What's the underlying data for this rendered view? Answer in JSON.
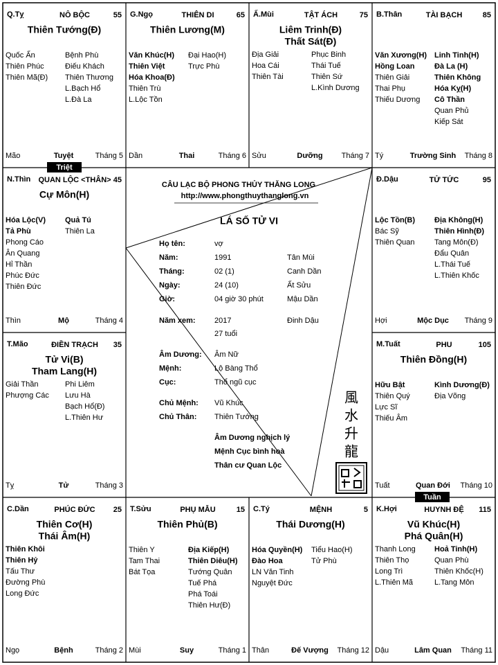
{
  "header": {
    "club": "CÂU LẠC BỘ PHONG THỦY THĂNG LONG",
    "url": "http://www.phongthuythanglong.vn",
    "title": "LÁ SỐ TỬ VI"
  },
  "info": [
    {
      "label": "Họ tên:",
      "values": [
        "vợ"
      ]
    },
    {
      "label": "Năm:",
      "values": [
        "1991",
        "Tân Mùi"
      ]
    },
    {
      "label": "Tháng:",
      "values": [
        "02 (1)",
        "Canh Dần"
      ]
    },
    {
      "label": "Ngày:",
      "values": [
        "24 (10)",
        "Ất Sửu"
      ]
    },
    {
      "label": "Giờ:",
      "values": [
        "04 giờ 30 phút",
        "Mậu Dần"
      ]
    },
    {
      "label": "Năm xem:",
      "values": [
        "2017",
        "Đinh Dậu"
      ],
      "note": "27 tuổi"
    },
    {
      "label": "Âm Dương:",
      "values": [
        "Âm Nữ"
      ]
    },
    {
      "label": "Mệnh:",
      "values": [
        "Lộ Bàng Thổ"
      ]
    },
    {
      "label": "Cục:",
      "values": [
        "Thổ ngũ cục"
      ]
    },
    {
      "label": "Chủ Mệnh:",
      "values": [
        "Vũ Khúc"
      ]
    },
    {
      "label": "Chủ Thân:",
      "values": [
        "Thiên Tướng"
      ]
    }
  ],
  "remarks": [
    "Âm Dương nghịch lý",
    "Mệnh Cục bình hoà",
    "Thân cư Quan Lộc"
  ],
  "calligraphy": [
    "風",
    "水",
    "升",
    "龍"
  ],
  "badges": {
    "triet": "Triệt",
    "tuan": "Tuần"
  },
  "palaces": [
    {
      "can_chi": "Q.Tỵ",
      "name": "NÔ BỘC",
      "number": 55,
      "main": [
        "Thiên Tướng(Đ)"
      ],
      "left_bold": [],
      "left": [
        "Quốc Ấn",
        "Thiên Phúc",
        "Thiên Mã(Đ)"
      ],
      "right_bold": [],
      "right": [
        "Bệnh Phù",
        "Điếu Khách",
        "Thiên Thương",
        "L.Bạch Hổ",
        "L.Đà La"
      ],
      "branch": "Mão",
      "phase": "Tuyệt",
      "month": "Tháng 5"
    },
    {
      "can_chi": "G.Ngọ",
      "name": "THIÊN DI",
      "number": 65,
      "main": [
        "Thiên Lương(M)"
      ],
      "left_bold": [
        "Văn Khúc(H)",
        "Thiên Việt",
        "Hóa Khoa(Đ)"
      ],
      "left": [
        "Thiên Trù",
        "L.Lộc Tồn"
      ],
      "right_bold": [],
      "right": [
        "Đại Hao(H)",
        "Trực Phù"
      ],
      "branch": "Dần",
      "phase": "Thai",
      "month": "Tháng 6"
    },
    {
      "can_chi": "Ấ.Mùi",
      "name": "TẬT ÁCH",
      "number": 75,
      "main": [
        "Liêm Trinh(Đ)",
        "Thất Sát(Đ)"
      ],
      "left_bold": [],
      "left": [
        "Địa Giải",
        "Hoa Cái",
        "Thiên Tài"
      ],
      "right_bold": [],
      "right": [
        "Phục Binh",
        "Thái Tuế",
        "Thiên Sứ",
        "L.Kình Dương"
      ],
      "branch": "Sửu",
      "phase": "Dưỡng",
      "month": "Tháng 7"
    },
    {
      "can_chi": "B.Thân",
      "name": "TÀI BẠCH",
      "number": 85,
      "main": [],
      "left_bold": [
        "Văn Xương(H)",
        "Hồng Loan"
      ],
      "left": [
        "Thiên Giải",
        "Thai Phụ",
        "Thiếu Dương"
      ],
      "right_bold": [
        "Linh Tinh(H)",
        "Đà La (H)",
        "Thiên Không",
        "Hóa Kỵ(H)",
        "Cô Thần"
      ],
      "right": [
        "Quan Phủ",
        "Kiếp Sát"
      ],
      "branch": "Tý",
      "phase": "Trường Sinh",
      "month": "Tháng 8"
    },
    {
      "can_chi": "Đ.Dậu",
      "name": "TỬ TỨC",
      "number": 95,
      "main": [],
      "left_bold": [
        "Lộc Tồn(B)"
      ],
      "left": [
        "Bác Sỹ",
        "Thiên Quan"
      ],
      "right_bold": [
        "Địa Không(H)",
        "Thiên Hình(Đ)"
      ],
      "right": [
        "Tang Môn(Đ)",
        "Đẩu Quân",
        "L.Thái Tuế",
        "L.Thiên Khốc"
      ],
      "branch": "Hợi",
      "phase": "Mộc Dục",
      "month": "Tháng 9"
    },
    {
      "can_chi": "M.Tuất",
      "name": "PHU",
      "number": 105,
      "main": [
        "Thiên Đồng(H)"
      ],
      "left_bold": [
        "Hữu Bật"
      ],
      "left": [
        "Thiên Quý",
        "Lực Sĩ",
        "Thiếu Âm"
      ],
      "right_bold": [
        "Kình Dương(Đ)"
      ],
      "right": [
        "Địa Võng"
      ],
      "branch": "Tuất",
      "phase": "Quan Đới",
      "month": "Tháng 10"
    },
    {
      "can_chi": "K.Hợi",
      "name": "HUYNH ĐỆ",
      "number": 115,
      "main": [
        "Vũ Khúc(H)",
        "Phá Quân(H)"
      ],
      "left_bold": [],
      "left": [
        "Thanh Long",
        "Thiên Thọ",
        "Long Trì",
        "L.Thiên Mã"
      ],
      "right_bold": [
        "Hoả Tinh(H)"
      ],
      "right": [
        "Quan Phù",
        "Thiên Khốc(H)",
        "L.Tang Môn"
      ],
      "branch": "Dậu",
      "phase": "Lâm Quan",
      "month": "Tháng 11"
    },
    {
      "can_chi": "C.Tý",
      "name": "MỆNH",
      "number": 5,
      "main": [
        "Thái Dương(H)"
      ],
      "left_bold": [
        "Hóa Quyền(H)",
        "Đào Hoa"
      ],
      "left": [
        "LN Văn Tinh",
        "Nguyệt Đức"
      ],
      "right_bold": [],
      "right": [
        "Tiểu Hao(H)",
        "Tử Phù"
      ],
      "branch": "Thân",
      "phase": "Đế Vượng",
      "month": "Tháng 12"
    },
    {
      "can_chi": "T.Sửu",
      "name": "PHỤ MẪU",
      "number": 15,
      "main": [
        "Thiên Phủ(B)"
      ],
      "left_bold": [],
      "left": [
        "Thiên Y",
        "Tam Thai",
        "Bát Tọa"
      ],
      "right_bold": [
        "Địa Kiếp(H)",
        "Thiên Diêu(H)"
      ],
      "right": [
        "Tướng Quân",
        "Tuế Phá",
        "Phá Toái",
        "Thiên Hư(Đ)"
      ],
      "branch": "Mùi",
      "phase": "Suy",
      "month": "Tháng 1"
    },
    {
      "can_chi": "C.Dần",
      "name": "PHÚC ĐỨC",
      "number": 25,
      "main": [
        "Thiên Cơ(H)",
        "Thái Âm(H)"
      ],
      "left_bold": [
        "Thiên Khôi",
        "Thiên Hỷ"
      ],
      "left": [
        "Tấu Thư",
        "Đường Phù",
        "Long Đức"
      ],
      "right_bold": [],
      "right": [],
      "branch": "Ngọ",
      "phase": "Bệnh",
      "month": "Tháng 2"
    },
    {
      "can_chi": "T.Mão",
      "name": "ĐIỀN TRẠCH",
      "number": 35,
      "main": [
        "Tử Vi(B)",
        "Tham Lang(H)"
      ],
      "left_bold": [],
      "left": [
        "Giải Thần",
        "Phượng Các"
      ],
      "right_bold": [],
      "right": [
        "Phi Liêm",
        "Lưu Hà",
        "Bạch Hổ(Đ)",
        "L.Thiên Hư"
      ],
      "branch": "Tỵ",
      "phase": "Tử",
      "month": "Tháng 3"
    },
    {
      "can_chi": "N.Thìn",
      "name": "QUAN LỘC <THÂN>",
      "number": 45,
      "main": [
        "Cự Môn(H)"
      ],
      "left_bold": [
        "Hóa Lộc(V)",
        "Tả Phù"
      ],
      "left": [
        "Phong Cáo",
        "Ân Quang",
        "Hỉ Thần",
        "Phúc Đức",
        "Thiên Đức"
      ],
      "right_bold": [
        "Quả Tú"
      ],
      "right": [
        "Thiên La"
      ],
      "branch": "Thìn",
      "phase": "Mộ",
      "month": "Tháng 4"
    }
  ]
}
